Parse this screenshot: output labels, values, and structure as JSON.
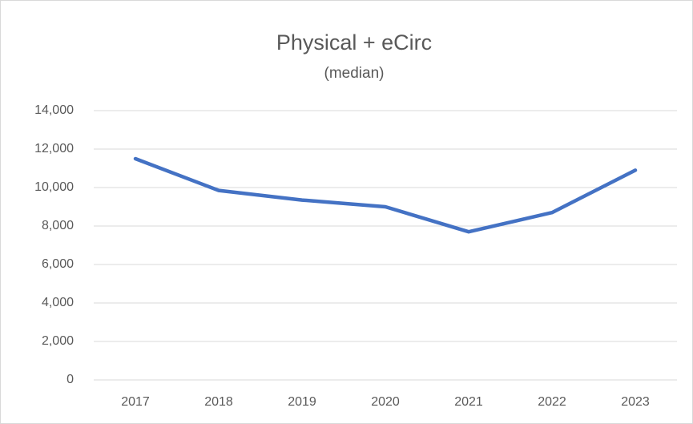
{
  "chart_data": {
    "type": "line",
    "title": "Physical + eCirc",
    "subtitle": "(median)",
    "categories": [
      "2017",
      "2018",
      "2019",
      "2020",
      "2021",
      "2022",
      "2023"
    ],
    "values": [
      11500,
      9850,
      9350,
      9000,
      7700,
      8700,
      10900
    ],
    "color": "#4472c4",
    "ylim": [
      0,
      14000
    ],
    "yticks": [
      0,
      {
        "value": 2000,
        "label": "2,000"
      },
      {
        "value": 4000,
        "label": "4,000"
      },
      {
        "value": 6000,
        "label": "6,000"
      },
      {
        "value": 8000,
        "label": "8,000"
      },
      {
        "value": 10000,
        "label": "10,000"
      },
      {
        "value": 12000,
        "label": "12,000"
      },
      {
        "value": 14000,
        "label": "14,000"
      }
    ],
    "grid": true
  }
}
